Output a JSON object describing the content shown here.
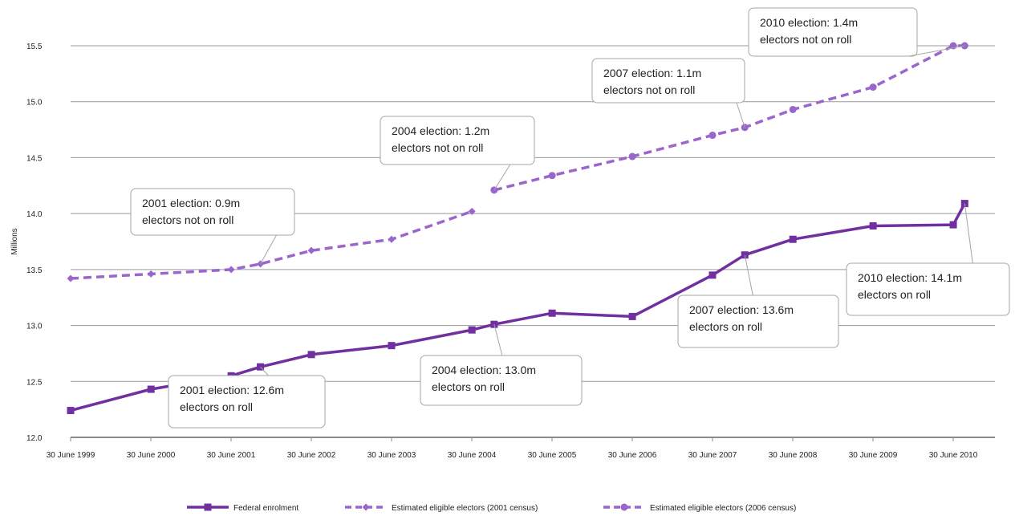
{
  "chart_data": {
    "type": "line",
    "ylabel": "Millions",
    "ylim": [
      12.0,
      15.5
    ],
    "yticks": [
      "12.0",
      "12.5",
      "13.0",
      "13.5",
      "14.0",
      "14.5",
      "15.0",
      "15.5"
    ],
    "xticks": [
      "30 June 1999",
      "30 June 2000",
      "30 June 2001",
      "30 June 2002",
      "30 June 2003",
      "30 June 2004",
      "30 June 2005",
      "30 June 2006",
      "30 June 2007",
      "30 June 2008",
      "30 June 2009",
      "30 June 2010"
    ],
    "grid": true,
    "legend_position": "bottom",
    "series": [
      {
        "name": "Federal enrolment",
        "color": "#7030a0",
        "style": "solid",
        "marker": "square",
        "points": [
          {
            "x": "1999-06-30",
            "y": 12.24
          },
          {
            "x": "2000-06-30",
            "y": 12.43
          },
          {
            "x": "2001-06-30",
            "y": 12.55
          },
          {
            "x": "2001-11-10",
            "y": 12.63
          },
          {
            "x": "2002-06-30",
            "y": 12.74
          },
          {
            "x": "2003-06-30",
            "y": 12.82
          },
          {
            "x": "2004-06-30",
            "y": 12.96
          },
          {
            "x": "2004-10-09",
            "y": 13.01
          },
          {
            "x": "2005-06-30",
            "y": 13.11
          },
          {
            "x": "2006-06-30",
            "y": 13.08
          },
          {
            "x": "2007-06-30",
            "y": 13.45
          },
          {
            "x": "2007-11-24",
            "y": 13.63
          },
          {
            "x": "2008-06-30",
            "y": 13.77
          },
          {
            "x": "2009-06-30",
            "y": 13.89
          },
          {
            "x": "2010-06-30",
            "y": 13.9
          },
          {
            "x": "2010-08-21",
            "y": 14.09
          }
        ]
      },
      {
        "name": "Estimated eligible electors (2001 census)",
        "color": "#9966cc",
        "style": "dashed",
        "marker": "diamond",
        "points": [
          {
            "x": "1999-06-30",
            "y": 13.42
          },
          {
            "x": "2000-06-30",
            "y": 13.46
          },
          {
            "x": "2001-06-30",
            "y": 13.5
          },
          {
            "x": "2001-11-10",
            "y": 13.55
          },
          {
            "x": "2002-06-30",
            "y": 13.67
          },
          {
            "x": "2003-06-30",
            "y": 13.77
          },
          {
            "x": "2004-06-30",
            "y": 14.02
          }
        ]
      },
      {
        "name": "Estimated eligible electors (2006 census)",
        "color": "#9966cc",
        "style": "dashed",
        "marker": "circle",
        "points": [
          {
            "x": "2004-10-09",
            "y": 14.21
          },
          {
            "x": "2005-06-30",
            "y": 14.34
          },
          {
            "x": "2006-06-30",
            "y": 14.51
          },
          {
            "x": "2007-06-30",
            "y": 14.7
          },
          {
            "x": "2007-11-24",
            "y": 14.77
          },
          {
            "x": "2008-06-30",
            "y": 14.93
          },
          {
            "x": "2009-06-30",
            "y": 15.13
          },
          {
            "x": "2010-06-30",
            "y": 15.5
          },
          {
            "x": "2010-08-21",
            "y": 15.5
          }
        ]
      }
    ],
    "annotations": [
      {
        "line1": "2010 election: 1.4m",
        "line2": "electors not on roll",
        "target": {
          "x": "2010-08-21",
          "y": 15.5
        }
      },
      {
        "line1": "2007 election: 1.1m",
        "line2": "electors not on roll",
        "target": {
          "x": "2007-11-24",
          "y": 14.77
        }
      },
      {
        "line1": "2004 election: 1.2m",
        "line2": "electors not on roll",
        "target": {
          "x": "2004-10-09",
          "y": 14.21
        }
      },
      {
        "line1": "2001 election: 0.9m",
        "line2": "electors not on roll",
        "target": {
          "x": "2001-11-10",
          "y": 13.55
        }
      },
      {
        "line1": "2010 election: 14.1m",
        "line2": "electors on roll",
        "target": {
          "x": "2010-08-21",
          "y": 14.09
        }
      },
      {
        "line1": "2007 election: 13.6m",
        "line2": "electors on roll",
        "target": {
          "x": "2007-11-24",
          "y": 13.63
        }
      },
      {
        "line1": "2004 election: 13.0m",
        "line2": "electors on roll",
        "target": {
          "x": "2004-10-09",
          "y": 13.01
        }
      },
      {
        "line1": "2001 election: 12.6m",
        "line2": "electors on roll",
        "target": {
          "x": "2001-11-10",
          "y": 12.63
        }
      }
    ]
  }
}
